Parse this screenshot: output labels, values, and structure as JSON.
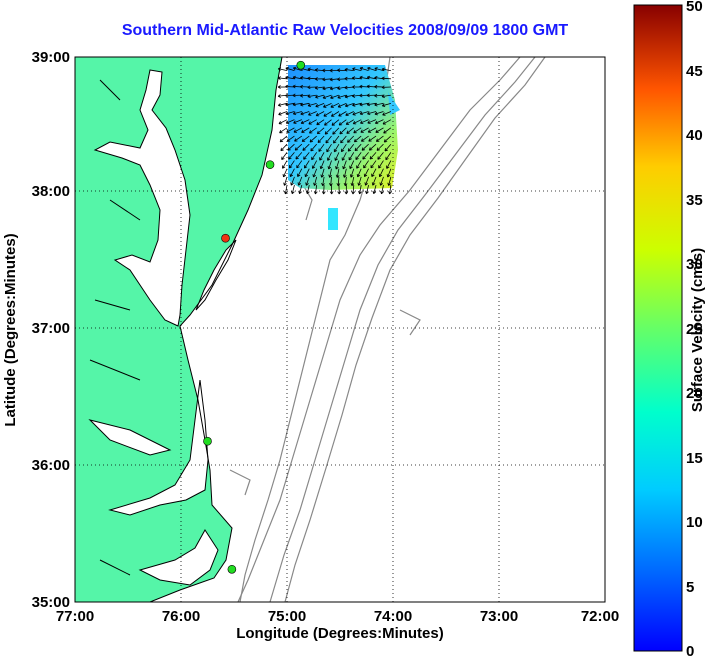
{
  "title": "Southern Mid-Atlantic Raw Velocities 2008/09/09 1800 GMT",
  "x_axis": {
    "label": "Longitude (Degrees:Minutes)",
    "ticks": [
      "77:00",
      "76:00",
      "75:00",
      "74:00",
      "73:00",
      "72:00"
    ],
    "range_deg_w": [
      77,
      72
    ]
  },
  "y_axis": {
    "label": "Latitude (Degrees:Minutes)",
    "ticks": [
      "39:00",
      "38:00",
      "37:00",
      "36:00",
      "35:00"
    ],
    "range_deg_n": [
      35,
      39
    ]
  },
  "colorbar": {
    "label": "Surface Velocity (cm/s)",
    "ticks": [
      "0",
      "5",
      "10",
      "15",
      "20",
      "25",
      "30",
      "35",
      "40",
      "45",
      "50"
    ],
    "range": [
      0,
      50
    ],
    "colormap": "jet"
  },
  "colors": {
    "land": "#55f5a8",
    "coastline": "#000000",
    "bathymetry": "#888888",
    "title": "#1a1aff",
    "site_active": "#22dd22",
    "site_alt": "#ee3311"
  },
  "stations": [
    {
      "id": "north",
      "lon": 74.87,
      "lat": 38.94,
      "status": "active"
    },
    {
      "id": "mid",
      "lon": 75.16,
      "lat": 38.21,
      "status": "active"
    },
    {
      "id": "south-md",
      "lon": 75.58,
      "lat": 37.67,
      "status": "alt"
    },
    {
      "id": "duck",
      "lon": 75.75,
      "lat": 36.18,
      "status": "active"
    },
    {
      "id": "hatteras",
      "lon": 75.52,
      "lat": 35.24,
      "status": "active"
    }
  ],
  "chart_data": {
    "type": "heatmap",
    "title": "Southern Mid-Atlantic Raw Velocities 2008/09/09 1800 GMT",
    "xlabel": "Longitude (Degrees:Minutes)",
    "ylabel": "Latitude (Degrees:Minutes)",
    "colorbar_label": "Surface Velocity (cm/s)",
    "xlim_deg_w": [
      77,
      72
    ],
    "ylim_deg_n": [
      35,
      39
    ],
    "clim": [
      0,
      50
    ],
    "grid": true,
    "velocity_field_extent": {
      "lon_w": [
        74.0,
        75.0
      ],
      "lat_n": [
        38.0,
        38.9
      ]
    },
    "speed_cm_s_samples": [
      {
        "lon": 74.9,
        "lat": 38.8,
        "speed": 7
      },
      {
        "lon": 74.6,
        "lat": 38.8,
        "speed": 6
      },
      {
        "lon": 74.3,
        "lat": 38.8,
        "speed": 7
      },
      {
        "lon": 74.9,
        "lat": 38.5,
        "speed": 9
      },
      {
        "lon": 74.6,
        "lat": 38.5,
        "speed": 13
      },
      {
        "lon": 74.3,
        "lat": 38.5,
        "speed": 20
      },
      {
        "lon": 74.1,
        "lat": 38.4,
        "speed": 24
      },
      {
        "lon": 74.9,
        "lat": 38.2,
        "speed": 12
      },
      {
        "lon": 74.6,
        "lat": 38.2,
        "speed": 17
      },
      {
        "lon": 74.3,
        "lat": 38.2,
        "speed": 19
      },
      {
        "lon": 74.6,
        "lat": 37.75,
        "speed": 11
      }
    ]
  }
}
